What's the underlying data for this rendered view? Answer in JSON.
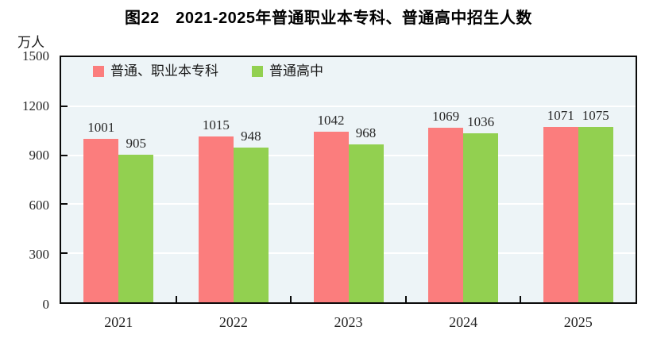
{
  "chart_data": {
    "type": "bar",
    "title": "图22　2021-2025年普通职业本专科、普通高中招生人数",
    "unit_label": "万人",
    "categories": [
      "2021",
      "2022",
      "2023",
      "2024",
      "2025"
    ],
    "series": [
      {
        "name": "普通、职业本专科",
        "key": "vocational-college",
        "color": "#fb7d7d",
        "values": [
          1001,
          1015,
          1042,
          1069,
          1071
        ]
      },
      {
        "name": "普通高中",
        "key": "regular-high-school",
        "color": "#92d050",
        "values": [
          905,
          948,
          968,
          1036,
          1075
        ]
      }
    ],
    "ylim": [
      0,
      1500
    ],
    "yticks": [
      0,
      300,
      600,
      900,
      1200,
      1500
    ],
    "grid": "horizontal-white",
    "legend_position": "top-left-inside",
    "plot_bg_color": "#edf4f7",
    "frame_color": "#0a0a0a",
    "label_color": "#262626"
  }
}
